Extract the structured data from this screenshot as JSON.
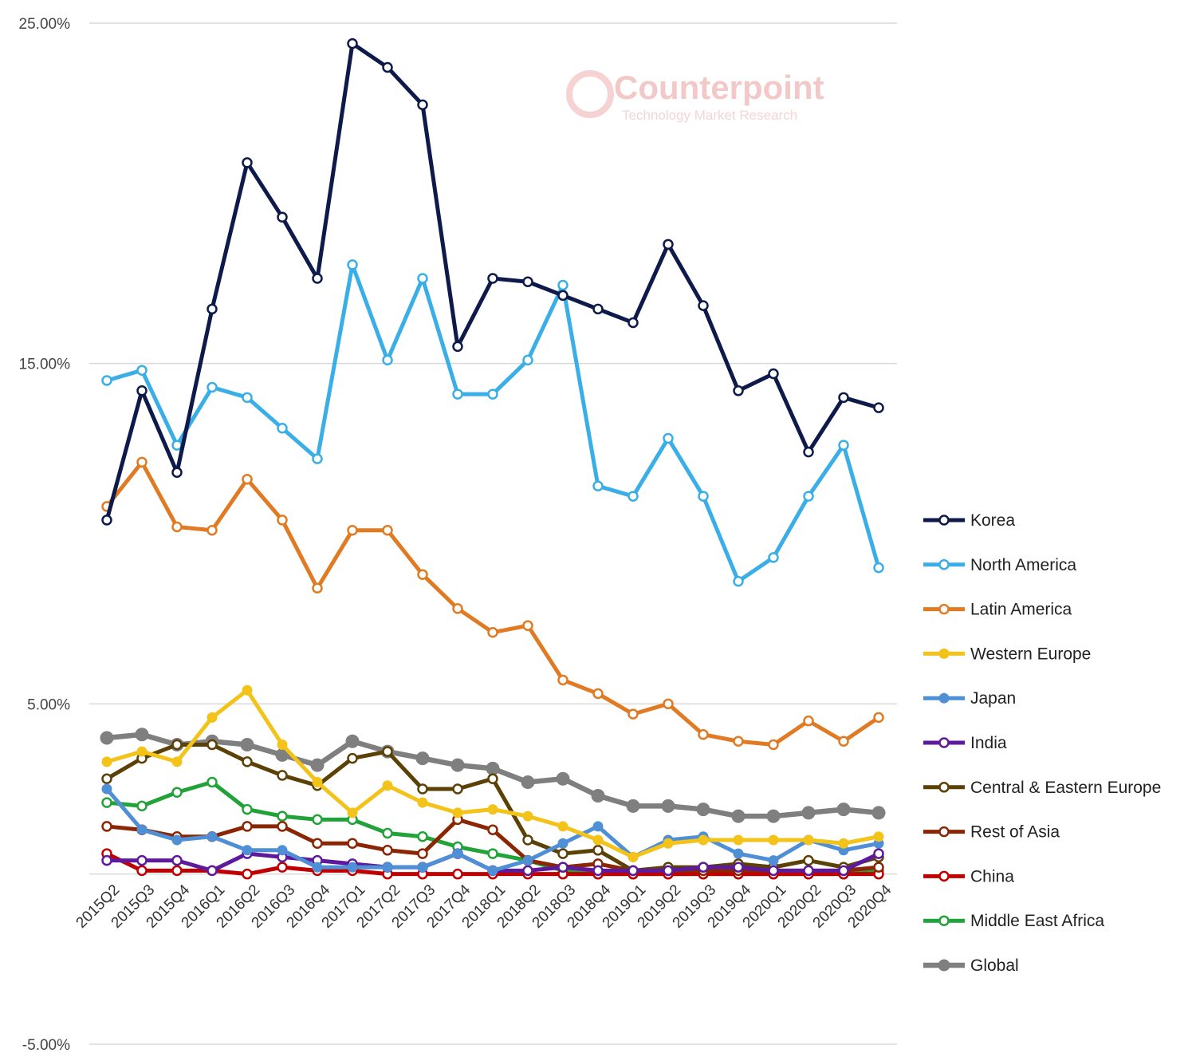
{
  "watermark": {
    "brand": "Counterpoint",
    "tagline": "Technology Market Research"
  },
  "chart_data": {
    "type": "line",
    "ylim": [
      -5,
      25
    ],
    "yticks": [
      25,
      15,
      5,
      -5
    ],
    "ytick_labels": [
      "25.00%",
      "15.00%",
      "5.00%",
      "-5.00%"
    ],
    "grid": true,
    "legend_position": "right",
    "categories": [
      "2015Q2",
      "2015Q3",
      "2015Q4",
      "2016Q1",
      "2016Q2",
      "2016Q3",
      "2016Q4",
      "2017Q1",
      "2017Q2",
      "2017Q3",
      "2017Q4",
      "2018Q1",
      "2018Q2",
      "2018Q3",
      "2018Q4",
      "2019Q1",
      "2019Q2",
      "2019Q3",
      "2019Q4",
      "2020Q1",
      "2020Q2",
      "2020Q3",
      "2020Q4"
    ],
    "series": [
      {
        "name": "Korea",
        "color": "#0d1a4a",
        "marker": "hollow",
        "values": [
          10.4,
          14.2,
          11.8,
          16.6,
          20.9,
          19.3,
          17.5,
          24.4,
          23.7,
          22.6,
          15.5,
          17.5,
          17.4,
          17.0,
          16.6,
          16.2,
          18.5,
          16.7,
          14.2,
          14.7,
          12.4,
          14.0,
          13.7
        ]
      },
      {
        "name": "North America",
        "color": "#3aaee6",
        "marker": "hollow",
        "values": [
          14.5,
          14.8,
          12.6,
          14.3,
          14.0,
          13.1,
          12.2,
          17.9,
          15.1,
          17.5,
          14.1,
          14.1,
          15.1,
          17.3,
          11.4,
          11.1,
          12.8,
          11.1,
          8.6,
          9.3,
          11.1,
          12.6,
          9.0
        ]
      },
      {
        "name": "Latin America",
        "color": "#e07b24",
        "marker": "hollow",
        "values": [
          10.8,
          12.1,
          10.2,
          10.1,
          11.6,
          10.4,
          8.4,
          10.1,
          10.1,
          8.8,
          7.8,
          7.1,
          7.3,
          5.7,
          5.3,
          4.7,
          5.0,
          4.1,
          3.9,
          3.8,
          4.5,
          3.9,
          4.6
        ]
      },
      {
        "name": "Western Europe",
        "color": "#f3c31a",
        "marker": "filled",
        "values": [
          3.3,
          3.6,
          3.3,
          4.6,
          5.4,
          3.8,
          2.7,
          1.8,
          2.6,
          2.1,
          1.8,
          1.9,
          1.7,
          1.4,
          1.0,
          0.5,
          0.9,
          1.0,
          1.0,
          1.0,
          1.0,
          0.9,
          1.1
        ]
      },
      {
        "name": "Japan",
        "color": "#4f8fd6",
        "marker": "filled",
        "values": [
          2.5,
          1.3,
          1.0,
          1.1,
          0.7,
          0.7,
          0.2,
          0.2,
          0.2,
          0.2,
          0.6,
          0.1,
          0.4,
          0.9,
          1.4,
          0.5,
          1.0,
          1.1,
          0.6,
          0.4,
          1.0,
          0.7,
          0.9
        ]
      },
      {
        "name": "India",
        "color": "#5e1a9c",
        "marker": "hollow",
        "values": [
          0.4,
          0.4,
          0.4,
          0.1,
          0.6,
          0.5,
          0.4,
          0.3,
          0.2,
          0.2,
          0.6,
          0.1,
          0.1,
          0.2,
          0.1,
          0.1,
          0.1,
          0.2,
          0.2,
          0.1,
          0.1,
          0.1,
          0.6
        ]
      },
      {
        "name": "Central & Eastern Europe",
        "color": "#5c4106",
        "marker": "hollow",
        "values": [
          2.8,
          3.4,
          3.8,
          3.8,
          3.3,
          2.9,
          2.6,
          3.4,
          3.6,
          2.5,
          2.5,
          2.8,
          1.0,
          0.6,
          0.7,
          0.1,
          0.2,
          0.2,
          0.3,
          0.2,
          0.4,
          0.2,
          0.5
        ]
      },
      {
        "name": "Rest of Asia",
        "color": "#8a2604",
        "marker": "hollow",
        "values": [
          1.4,
          1.3,
          1.1,
          1.1,
          1.4,
          1.4,
          0.9,
          0.9,
          0.7,
          0.6,
          1.6,
          1.3,
          0.4,
          0.2,
          0.3,
          0.1,
          0.1,
          0.1,
          0.1,
          0.1,
          0.1,
          0.1,
          0.2
        ]
      },
      {
        "name": "China",
        "color": "#c00000",
        "marker": "hollow",
        "values": [
          0.6,
          0.1,
          0.1,
          0.1,
          0.0,
          0.2,
          0.1,
          0.1,
          0.0,
          0.0,
          0.0,
          0.0,
          0.0,
          0.0,
          0.0,
          0.0,
          0.0,
          0.0,
          0.0,
          0.0,
          0.0,
          0.0,
          0.0
        ]
      },
      {
        "name": "Middle East Africa",
        "color": "#21a33a",
        "marker": "hollow",
        "values": [
          2.1,
          2.0,
          2.4,
          2.7,
          1.9,
          1.7,
          1.6,
          1.6,
          1.2,
          1.1,
          0.8,
          0.6,
          0.4,
          0.1,
          0.0,
          0.0,
          0.0,
          0.0,
          0.0,
          0.0,
          0.0,
          0.0,
          0.1
        ]
      },
      {
        "name": "Global",
        "color": "#7f7f7f",
        "marker": "filled-thick",
        "values": [
          4.0,
          4.1,
          3.8,
          3.9,
          3.8,
          3.5,
          3.2,
          3.9,
          3.6,
          3.4,
          3.2,
          3.1,
          2.7,
          2.8,
          2.3,
          2.0,
          2.0,
          1.9,
          1.7,
          1.7,
          1.8,
          1.9,
          1.8
        ]
      }
    ]
  }
}
